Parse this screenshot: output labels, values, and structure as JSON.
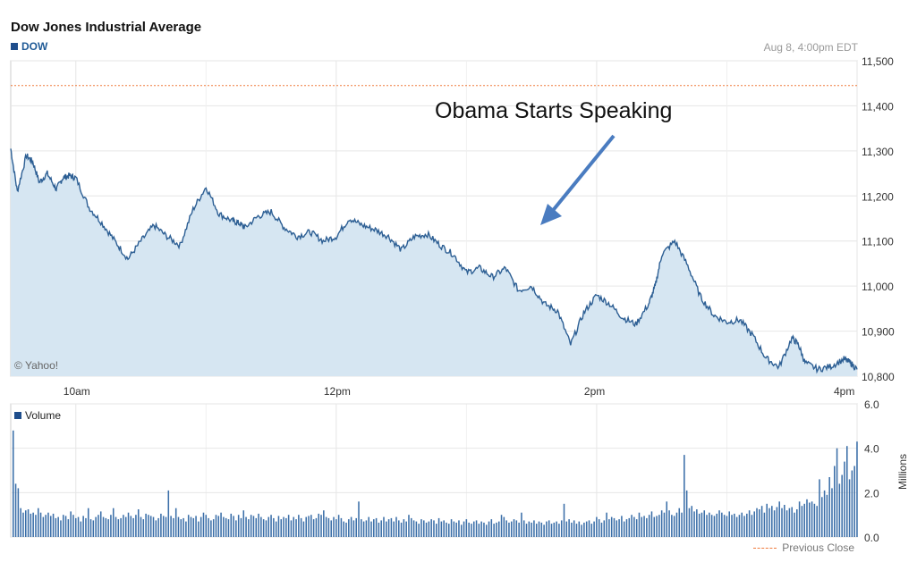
{
  "chart_data": {
    "type": "area",
    "title": "Dow Jones Industrial Average",
    "series_label": "DOW",
    "timestamp": "Aug 8, 4:00pm EDT",
    "copyright": "© Yahoo!",
    "annotation": "Obama Starts Speaking",
    "x_ticks": [
      "10am",
      "12pm",
      "2pm",
      "4pm"
    ],
    "y_ticks": [
      "11,500",
      "11,400",
      "11,300",
      "11,200",
      "11,100",
      "11,000",
      "10,900",
      "10,800"
    ],
    "ylim": [
      10800,
      11500
    ],
    "previous_close": 11445,
    "price": {
      "t": [
        9.5,
        9.55,
        9.62,
        9.67,
        9.72,
        9.78,
        9.85,
        9.9,
        9.95,
        10.0,
        10.1,
        10.2,
        10.3,
        10.4,
        10.5,
        10.6,
        10.7,
        10.8,
        10.9,
        11.0,
        11.1,
        11.2,
        11.25,
        11.3,
        11.4,
        11.5,
        11.6,
        11.7,
        11.8,
        11.9,
        12.0,
        12.1,
        12.2,
        12.3,
        12.4,
        12.5,
        12.6,
        12.7,
        12.8,
        12.9,
        13.0,
        13.1,
        13.2,
        13.3,
        13.4,
        13.5,
        13.6,
        13.7,
        13.8,
        13.9,
        14.0,
        14.1,
        14.2,
        14.3,
        14.4,
        14.45,
        14.5,
        14.6,
        14.7,
        14.8,
        14.9,
        15.0,
        15.1,
        15.2,
        15.3,
        15.4,
        15.5,
        15.55,
        15.6,
        15.7,
        15.8,
        15.9,
        15.95,
        16.0
      ],
      "v": [
        11305,
        11210,
        11290,
        11275,
        11230,
        11250,
        11215,
        11240,
        11245,
        11240,
        11175,
        11140,
        11100,
        11060,
        11100,
        11135,
        11110,
        11090,
        11170,
        11220,
        11160,
        11145,
        11140,
        11130,
        11155,
        11165,
        11130,
        11110,
        11120,
        11100,
        11110,
        11150,
        11135,
        11125,
        11110,
        11080,
        11110,
        11115,
        11090,
        11070,
        11030,
        11040,
        11020,
        11040,
        10990,
        11000,
        10960,
        10945,
        10870,
        10940,
        10980,
        10960,
        10930,
        10915,
        10960,
        11000,
        11070,
        11100,
        11045,
        10975,
        10935,
        10920,
        10925,
        10890,
        10840,
        10820,
        10885,
        10870,
        10830,
        10815,
        10822,
        10838,
        10830,
        10815
      ]
    },
    "volume_ticks": [
      "6.0",
      "4.0",
      "2.0",
      "0.0"
    ],
    "volume_unit": "Millions",
    "volume_label": "Volume",
    "volume_ylim": [
      0,
      6
    ],
    "volume": [
      4.8,
      2.4,
      2.2,
      1.3,
      1.1,
      1.2,
      1.25,
      1.05,
      1.1,
      1.0,
      1.3,
      1.1,
      0.9,
      1.0,
      1.1,
      0.95,
      1.05,
      0.85,
      0.9,
      0.75,
      1.0,
      0.95,
      0.8,
      1.15,
      1.0,
      0.85,
      0.9,
      0.7,
      0.95,
      0.85,
      1.3,
      0.8,
      0.75,
      0.9,
      1.0,
      1.15,
      0.9,
      0.85,
      0.8,
      1.0,
      1.3,
      0.9,
      0.8,
      0.85,
      1.0,
      0.9,
      1.1,
      0.95,
      0.85,
      1.0,
      1.25,
      0.9,
      0.8,
      1.05,
      1.0,
      0.95,
      0.9,
      0.75,
      0.85,
      1.05,
      0.95,
      0.9,
      2.1,
      0.95,
      0.85,
      1.3,
      0.9,
      0.8,
      0.85,
      0.7,
      1.0,
      0.9,
      0.85,
      0.95,
      0.7,
      0.9,
      1.1,
      1.0,
      0.85,
      0.75,
      0.8,
      1.0,
      0.95,
      1.1,
      0.9,
      0.85,
      0.8,
      1.05,
      0.95,
      0.75,
      1.0,
      0.85,
      1.2,
      0.9,
      0.8,
      1.0,
      0.95,
      0.85,
      1.05,
      0.9,
      0.8,
      0.75,
      0.9,
      1.0,
      0.85,
      0.7,
      0.95,
      0.8,
      0.9,
      0.85,
      1.0,
      0.75,
      0.9,
      0.8,
      1.0,
      0.85,
      0.7,
      0.9,
      0.95,
      1.0,
      0.8,
      0.85,
      1.05,
      1.0,
      1.2,
      0.9,
      0.85,
      0.75,
      0.9,
      0.8,
      1.0,
      0.85,
      0.7,
      0.65,
      0.8,
      0.9,
      0.75,
      0.85,
      1.6,
      0.8,
      0.7,
      0.75,
      0.9,
      0.7,
      0.8,
      0.85,
      0.65,
      0.75,
      0.9,
      0.7,
      0.8,
      0.85,
      0.7,
      0.9,
      0.75,
      0.65,
      0.8,
      0.7,
      1.0,
      0.85,
      0.75,
      0.7,
      0.6,
      0.8,
      0.75,
      0.65,
      0.7,
      0.8,
      0.75,
      0.6,
      0.85,
      0.7,
      0.75,
      0.65,
      0.6,
      0.8,
      0.7,
      0.65,
      0.75,
      0.55,
      0.7,
      0.8,
      0.65,
      0.6,
      0.7,
      0.75,
      0.6,
      0.7,
      0.65,
      0.55,
      0.7,
      0.8,
      0.6,
      0.65,
      0.7,
      1.0,
      0.9,
      0.75,
      0.65,
      0.7,
      0.8,
      0.75,
      0.65,
      1.1,
      0.75,
      0.6,
      0.7,
      0.65,
      0.75,
      0.6,
      0.7,
      0.65,
      0.55,
      0.7,
      0.75,
      0.6,
      0.65,
      0.7,
      0.6,
      0.75,
      1.5,
      0.7,
      0.8,
      0.65,
      0.75,
      0.6,
      0.7,
      0.55,
      0.65,
      0.7,
      0.75,
      0.6,
      0.7,
      0.9,
      0.8,
      0.65,
      0.75,
      1.1,
      0.8,
      0.9,
      0.85,
      0.75,
      0.8,
      0.95,
      0.7,
      0.8,
      0.85,
      1.0,
      0.9,
      0.8,
      1.1,
      0.9,
      0.95,
      0.85,
      1.0,
      1.15,
      0.9,
      0.95,
      1.0,
      1.2,
      1.1,
      1.6,
      1.2,
      1.0,
      0.95,
      1.1,
      1.3,
      1.1,
      3.7,
      2.1,
      1.3,
      1.4,
      1.15,
      1.25,
      1.05,
      1.1,
      1.2,
      1.0,
      1.1,
      1.0,
      0.95,
      1.05,
      1.2,
      1.1,
      1.0,
      0.95,
      1.15,
      1.0,
      1.05,
      0.9,
      1.0,
      1.1,
      0.95,
      1.05,
      1.2,
      1.0,
      1.15,
      1.3,
      1.25,
      1.4,
      1.1,
      1.5,
      1.3,
      1.4,
      1.2,
      1.35,
      1.6,
      1.3,
      1.45,
      1.2,
      1.3,
      1.35,
      1.1,
      1.25,
      1.6,
      1.4,
      1.5,
      1.7,
      1.55,
      1.6,
      1.5,
      1.4,
      2.6,
      1.8,
      2.1,
      1.9,
      2.7,
      2.2,
      3.2,
      4.0,
      2.4,
      2.8,
      3.4,
      4.1,
      2.6,
      3.0,
      3.2,
      4.3
    ]
  },
  "legend": {
    "previous_close_label": "Previous Close"
  },
  "colors": {
    "line": "#2d5f94",
    "fill": "#d6e6f2",
    "grid": "#e6e6e6",
    "prev_close": "#f07a3c",
    "bar": "#3a6ea8",
    "arrow": "#4a7cc0"
  }
}
